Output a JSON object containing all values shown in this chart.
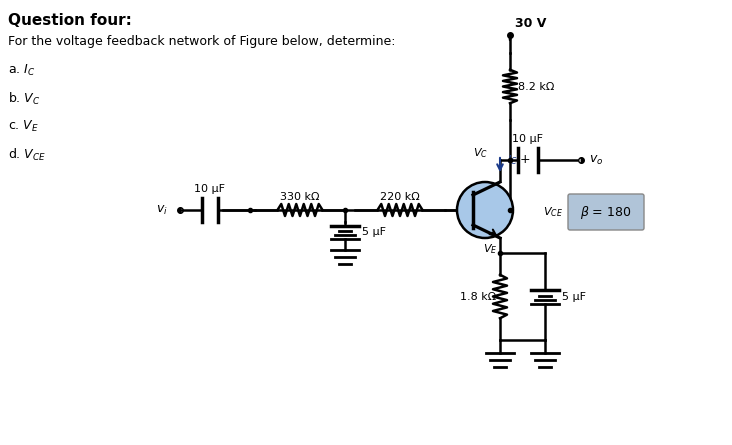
{
  "title": "Question four:",
  "subtitle": "For the voltage feedback network of Figure below, determine:",
  "items": [
    "a. $I_C$",
    "b. $V_C$",
    "c. $V_E$",
    "d. $V_{CE}$"
  ],
  "bg_color": "#ffffff",
  "text_color": "#000000",
  "title_color": "#000000",
  "beta_box_color": "#b0c4d8",
  "resistor_color": "#000000",
  "vcc": "30 V",
  "r1": "8.2 kΩ",
  "r2": "330 kΩ",
  "r3": "220 kΩ",
  "r4": "1.8 kΩ",
  "c1": "10 μF",
  "c2": "5 μF",
  "c3": "10 μF",
  "c4": "5 μF",
  "beta": "= 180",
  "vc_label": "$V_C$",
  "ic_label": "$I_C$",
  "ve_label": "$V_E$",
  "vce_label": "$V_{CE}$",
  "vo_label": "$v_o$",
  "vi_label": "$v_i$"
}
